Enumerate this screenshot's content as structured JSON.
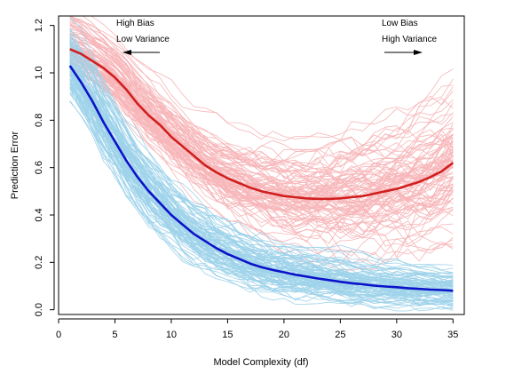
{
  "chart_data": {
    "type": "line",
    "title": "",
    "xlabel": "Model Complexity (df)",
    "ylabel": "Prediction Error",
    "xlim": [
      0,
      36
    ],
    "ylim": [
      -0.02,
      1.24
    ],
    "x_ticks": [
      "0",
      "5",
      "10",
      "15",
      "20",
      "25",
      "30",
      "35"
    ],
    "y_ticks": [
      "0.0",
      "0.2",
      "0.4",
      "0.6",
      "0.8",
      "1.0",
      "1.2"
    ],
    "grid": false,
    "annotations": {
      "left": {
        "line1": "High Bias",
        "line2": "Low Variance",
        "arrow": "left"
      },
      "right": {
        "line1": "Low Bias",
        "line2": "High Variance",
        "arrow": "right"
      }
    },
    "colors": {
      "test_realizations": "#f7b6b9",
      "training_realizations": "#9fd3ea",
      "test_mean": "#d11f1f",
      "training_mean": "#0b12c9"
    },
    "realizations_per_series": 100,
    "series": [
      {
        "role": "test-mean",
        "x": [
          1,
          2,
          3,
          4,
          5,
          6,
          7,
          8,
          9,
          10,
          11,
          12,
          13,
          14,
          15,
          16,
          17,
          18,
          19,
          20,
          21,
          22,
          23,
          24,
          25,
          26,
          27,
          28,
          29,
          30,
          31,
          32,
          33,
          34,
          35
        ],
        "values": [
          1.1,
          1.08,
          1.05,
          1.02,
          0.98,
          0.93,
          0.87,
          0.82,
          0.78,
          0.73,
          0.69,
          0.65,
          0.61,
          0.58,
          0.555,
          0.535,
          0.515,
          0.5,
          0.49,
          0.48,
          0.475,
          0.47,
          0.468,
          0.468,
          0.47,
          0.475,
          0.48,
          0.49,
          0.5,
          0.51,
          0.525,
          0.54,
          0.56,
          0.585,
          0.62
        ]
      },
      {
        "role": "training-mean",
        "x": [
          1,
          2,
          3,
          4,
          5,
          6,
          7,
          8,
          9,
          10,
          11,
          12,
          13,
          14,
          15,
          16,
          17,
          18,
          19,
          20,
          21,
          22,
          23,
          24,
          25,
          26,
          27,
          28,
          29,
          30,
          31,
          32,
          33,
          34,
          35
        ],
        "values": [
          1.03,
          0.96,
          0.88,
          0.79,
          0.71,
          0.63,
          0.56,
          0.5,
          0.45,
          0.4,
          0.36,
          0.32,
          0.29,
          0.26,
          0.235,
          0.215,
          0.195,
          0.18,
          0.168,
          0.158,
          0.148,
          0.14,
          0.132,
          0.125,
          0.118,
          0.112,
          0.107,
          0.102,
          0.098,
          0.095,
          0.091,
          0.088,
          0.085,
          0.083,
          0.08
        ]
      }
    ]
  }
}
